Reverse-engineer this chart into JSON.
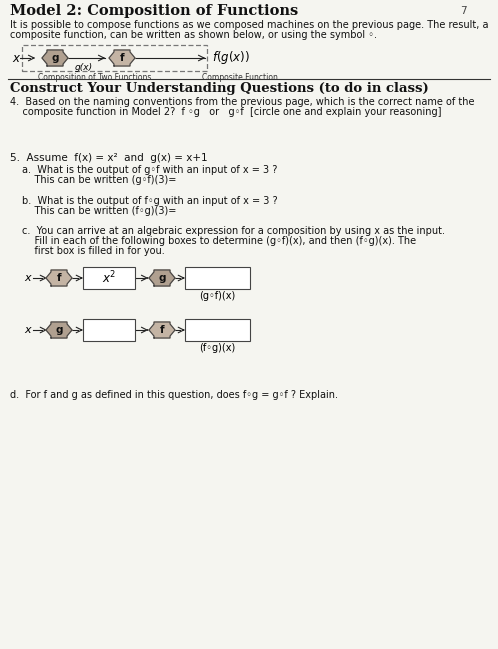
{
  "title": "Model 2: Composition of Functions",
  "page_num": "7",
  "bg_color": "#f5f5f0",
  "text_color": "#1a1a1a",
  "intro_line1": "It is possible to ",
  "intro_bold": "compose",
  "intro_line1b": " functions as we composed machines on the previous page. The result, a",
  "intro_line2": "composite function, can be written as shown below, or using the symbol ◦.",
  "diagram_label_left": "Composition of Two Functions",
  "diagram_label_right": "Composite Function",
  "section_title": "Construct Your Understanding Questions (to do in class)",
  "q4_line1": "4.  Based on the naming conventions from the previous page, which is the correct name of the",
  "q4_line2": "    composite function in Model 2?  f ◦g   or   g◦f  [circle one and explain your reasoning]",
  "q5_intro": "5.  Assume  f(x) = x²  and  g(x) = x+1",
  "q5a_text": "a.  What is the output of g◦f with an input of x = 3 ?",
  "q5a_sub": "    This can be written (g◦f)(3)=",
  "q5b_text": "b.  What is the output of f◦g with an input of x = 3 ?",
  "q5b_sub": "    This can be written (f◦g)(3)=",
  "q5c_line1": "c.  You can arrive at an algebraic expression for a composition by using x as the input.",
  "q5c_line2": "    Fill in each of the following boxes to determine (g◦f)(x), and then (f◦g)(x). The",
  "q5c_line3": "    first box is filled in for you.",
  "box1_label": "x²",
  "gof_label": "(g◦f)(x)",
  "fog_label": "(f◦g)(x)",
  "q5d_text": "d.  For f and g as defined in this question, does f◦g = g◦f ? Explain."
}
